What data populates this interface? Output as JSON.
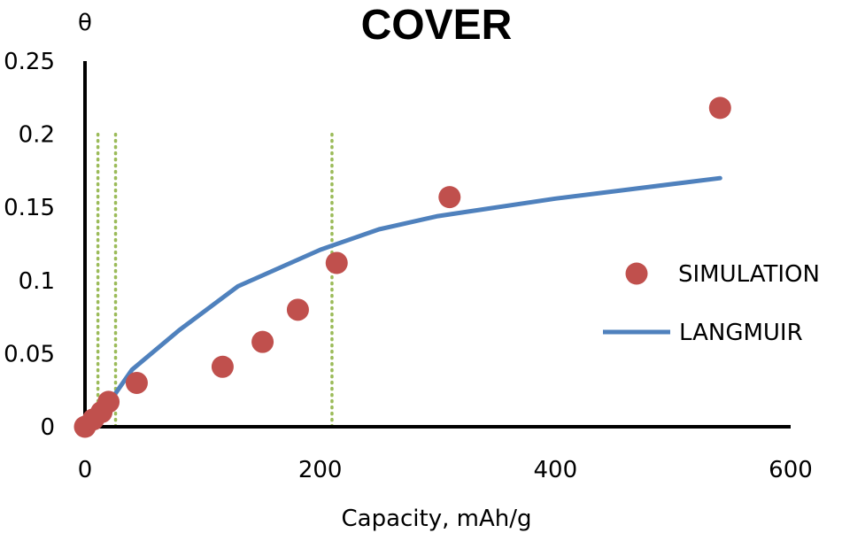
{
  "chart_data": {
    "type": "scatter",
    "title": "COVER",
    "xlabel": "Capacity, mAh/g",
    "ylabel": "θ",
    "xlim": [
      0,
      600
    ],
    "ylim": [
      0,
      0.25
    ],
    "xticks": [
      0,
      200,
      400,
      600
    ],
    "xtick_labels": [
      "0",
      "200",
      "400",
      "600"
    ],
    "yticks": [
      0,
      0.05,
      0.1,
      0.15,
      0.2,
      0.25
    ],
    "ytick_labels": [
      "0",
      "0.05",
      "0.1",
      "0.15",
      "0.2",
      "0.25"
    ],
    "grid": false,
    "legend_position": "right",
    "series": [
      {
        "name": "SIMULATION",
        "kind": "scatter",
        "color": "#c0504d",
        "points": [
          {
            "x": 0,
            "y": 0.0
          },
          {
            "x": 7,
            "y": 0.005
          },
          {
            "x": 14,
            "y": 0.01
          },
          {
            "x": 20,
            "y": 0.017
          },
          {
            "x": 44,
            "y": 0.03
          },
          {
            "x": 117,
            "y": 0.041
          },
          {
            "x": 151,
            "y": 0.058
          },
          {
            "x": 181,
            "y": 0.08
          },
          {
            "x": 214,
            "y": 0.112
          },
          {
            "x": 310,
            "y": 0.157
          },
          {
            "x": 540,
            "y": 0.218
          }
        ]
      },
      {
        "name": "LANGMUIR",
        "kind": "line",
        "color": "#4f81bd",
        "points": [
          {
            "x": 14,
            "y": 0.005
          },
          {
            "x": 20,
            "y": 0.016
          },
          {
            "x": 40,
            "y": 0.039
          },
          {
            "x": 80,
            "y": 0.066
          },
          {
            "x": 130,
            "y": 0.096
          },
          {
            "x": 200,
            "y": 0.121
          },
          {
            "x": 250,
            "y": 0.135
          },
          {
            "x": 300,
            "y": 0.144
          },
          {
            "x": 400,
            "y": 0.156
          },
          {
            "x": 540,
            "y": 0.17
          }
        ]
      }
    ],
    "reference_lines": {
      "orientation": "vertical",
      "style": "dotted",
      "color": "#9bbb59",
      "x": [
        11,
        26,
        210
      ],
      "y_range": [
        0,
        0.2
      ]
    }
  }
}
